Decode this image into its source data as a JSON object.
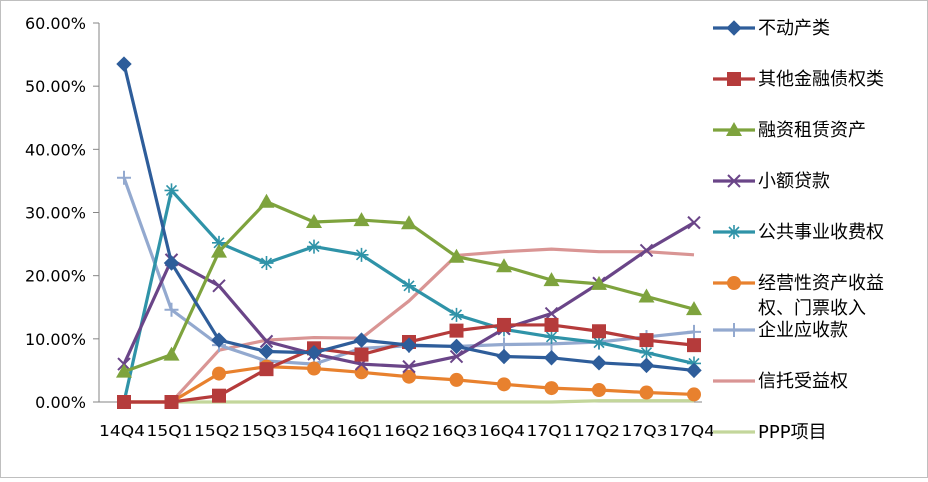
{
  "chart_data": {
    "type": "line",
    "title": "",
    "xlabel": "",
    "ylabel": "",
    "categories": [
      "14Q4",
      "15Q1",
      "15Q2",
      "15Q3",
      "15Q4",
      "16Q1",
      "16Q2",
      "16Q3",
      "16Q4",
      "17Q1",
      "17Q2",
      "17Q3",
      "17Q4"
    ],
    "ylim": [
      0,
      60
    ],
    "yticks": [
      0,
      10,
      20,
      30,
      40,
      50,
      60
    ],
    "ytick_labels": [
      "0.00%",
      "10.00%",
      "20.00%",
      "30.00%",
      "40.00%",
      "50.00%",
      "60.00%"
    ],
    "grid": false,
    "legend_position": "right",
    "series": [
      {
        "name": "不动产类",
        "color": "#2e5d9a",
        "marker": "diamond",
        "values": [
          53.5,
          22.0,
          9.8,
          8.0,
          7.8,
          9.8,
          9.0,
          8.8,
          7.2,
          7.0,
          6.2,
          5.8,
          5.0
        ]
      },
      {
        "name": "其他金融债权类",
        "color": "#b53b3b",
        "marker": "square",
        "values": [
          0.0,
          0.0,
          1.0,
          5.2,
          8.5,
          7.5,
          9.5,
          11.3,
          12.2,
          12.2,
          11.2,
          9.8,
          9.0
        ]
      },
      {
        "name": "融资租赁资产",
        "color": "#7ea33d",
        "marker": "triangle",
        "values": [
          4.8,
          7.5,
          23.8,
          31.7,
          28.5,
          28.8,
          28.3,
          23.0,
          21.5,
          19.3,
          18.7,
          16.7,
          14.7
        ]
      },
      {
        "name": "小额贷款",
        "color": "#6a4588",
        "marker": "x",
        "values": [
          6.0,
          22.5,
          18.4,
          9.6,
          7.6,
          6.0,
          5.6,
          7.2,
          11.6,
          14.0,
          18.8,
          24.0,
          28.4
        ]
      },
      {
        "name": "公共事业收费权",
        "color": "#2f93a8",
        "marker": "asterisk",
        "values": [
          0.0,
          33.5,
          25.2,
          22.0,
          24.6,
          23.3,
          18.4,
          13.8,
          11.5,
          10.3,
          9.4,
          7.8,
          6.1
        ]
      },
      {
        "name": "经营性资产收益权、门票收入",
        "color": "#e8812e",
        "marker": "circle",
        "values": [
          0.0,
          0.0,
          4.5,
          5.6,
          5.3,
          4.7,
          4.0,
          3.5,
          2.8,
          2.2,
          1.9,
          1.5,
          1.2
        ]
      },
      {
        "name": "企业应收款",
        "color": "#93a9cf",
        "marker": "plus",
        "values": [
          35.5,
          14.6,
          9.0,
          6.5,
          6.0,
          8.5,
          8.9,
          8.8,
          9.1,
          9.2,
          9.5,
          10.3,
          11.1
        ]
      },
      {
        "name": "信托受益权",
        "color": "#d99594",
        "marker": "none",
        "values": [
          0.0,
          0.0,
          8.2,
          9.8,
          10.2,
          10.1,
          16.0,
          23.2,
          23.8,
          24.2,
          23.8,
          23.8,
          23.3
        ]
      },
      {
        "name": "PPP项目",
        "color": "#c3d69b",
        "marker": "none",
        "values": [
          0.0,
          0.0,
          0.0,
          0.0,
          0.0,
          0.0,
          0.0,
          0.0,
          0.0,
          0.0,
          0.2,
          0.2,
          0.2
        ]
      }
    ]
  }
}
